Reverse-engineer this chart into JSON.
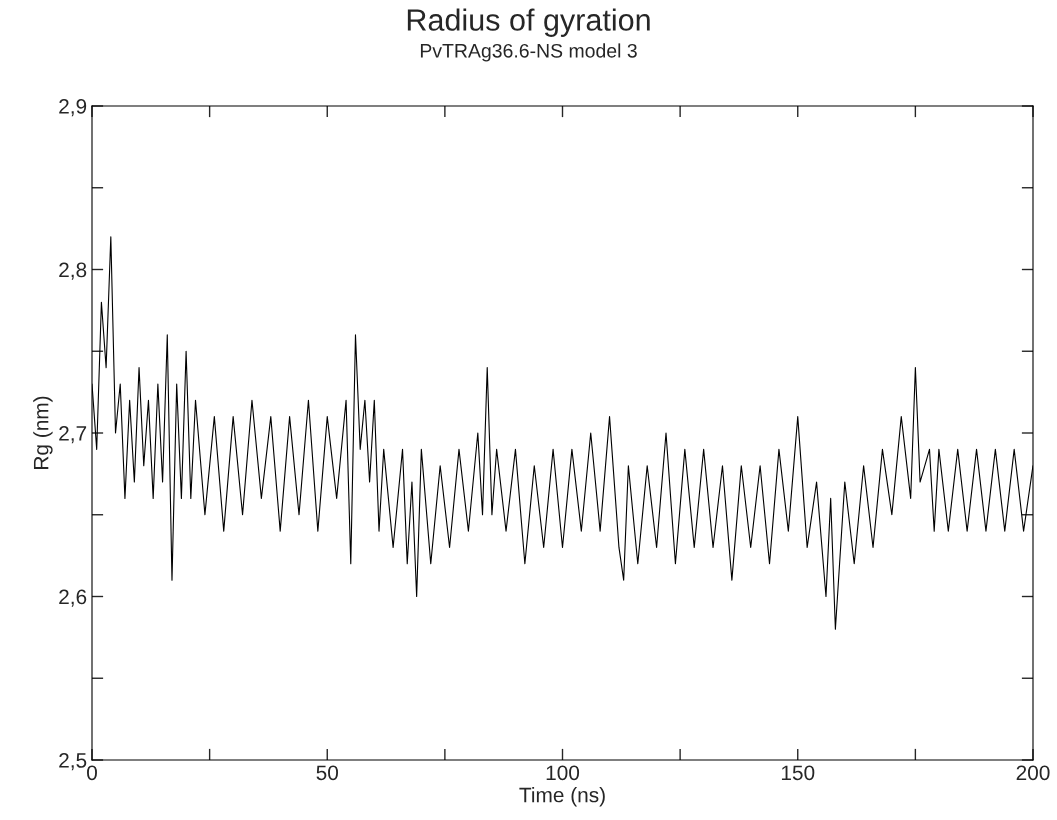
{
  "chart_data": {
    "type": "line",
    "title": "Radius of gyration",
    "subtitle": "PvTRAg36.6-NS model 3",
    "xlabel": "Time (ns)",
    "ylabel": "Rg (nm)",
    "xlim": [
      0,
      200
    ],
    "ylim": [
      2.5,
      2.9
    ],
    "xticks": [
      0,
      {
        "value": 25,
        "label": null
      },
      50,
      {
        "value": 75,
        "label": null
      },
      100,
      {
        "value": 125,
        "label": null
      },
      150,
      {
        "value": 175,
        "label": null
      },
      200
    ],
    "yticks": [
      {
        "value": 2.5,
        "label": "2,5"
      },
      {
        "value": 2.55,
        "label": null
      },
      {
        "value": 2.6,
        "label": "2,6"
      },
      {
        "value": 2.65,
        "label": null
      },
      {
        "value": 2.7,
        "label": "2,7"
      },
      {
        "value": 2.75,
        "label": null
      },
      {
        "value": 2.8,
        "label": "2,8"
      },
      {
        "value": 2.85,
        "label": null
      },
      {
        "value": 2.9,
        "label": "2,9"
      }
    ],
    "grid": false,
    "legend": false,
    "marker": "none",
    "line_style": "solid",
    "series": [
      {
        "color": "#000000",
        "x": [
          0,
          1,
          2,
          3,
          4,
          5,
          6,
          7,
          8,
          9,
          10,
          11,
          12,
          13,
          14,
          15,
          16,
          17,
          18,
          19,
          20,
          21,
          22,
          24,
          26,
          28,
          30,
          32,
          34,
          36,
          38,
          40,
          42,
          44,
          46,
          48,
          50,
          52,
          54,
          55,
          56,
          57,
          58,
          59,
          60,
          61,
          62,
          64,
          66,
          67,
          68,
          69,
          70,
          72,
          74,
          76,
          78,
          80,
          82,
          83,
          84,
          85,
          86,
          88,
          90,
          92,
          94,
          96,
          98,
          100,
          102,
          104,
          106,
          108,
          110,
          112,
          113,
          114,
          116,
          118,
          120,
          122,
          124,
          126,
          128,
          130,
          132,
          134,
          136,
          138,
          140,
          142,
          144,
          146,
          148,
          150,
          152,
          154,
          156,
          157,
          158,
          160,
          162,
          164,
          166,
          168,
          170,
          172,
          174,
          175,
          176,
          178,
          179,
          180,
          182,
          184,
          186,
          188,
          190,
          192,
          194,
          196,
          198,
          200
        ],
        "values": [
          2.73,
          2.69,
          2.78,
          2.74,
          2.82,
          2.7,
          2.73,
          2.66,
          2.72,
          2.67,
          2.74,
          2.68,
          2.72,
          2.66,
          2.73,
          2.67,
          2.76,
          2.61,
          2.73,
          2.66,
          2.75,
          2.66,
          2.72,
          2.65,
          2.71,
          2.64,
          2.71,
          2.65,
          2.72,
          2.66,
          2.71,
          2.64,
          2.71,
          2.65,
          2.72,
          2.64,
          2.71,
          2.66,
          2.72,
          2.62,
          2.76,
          2.69,
          2.72,
          2.67,
          2.72,
          2.64,
          2.69,
          2.63,
          2.69,
          2.62,
          2.67,
          2.6,
          2.69,
          2.62,
          2.68,
          2.63,
          2.69,
          2.64,
          2.7,
          2.65,
          2.74,
          2.65,
          2.69,
          2.64,
          2.69,
          2.62,
          2.68,
          2.63,
          2.69,
          2.63,
          2.69,
          2.64,
          2.7,
          2.64,
          2.71,
          2.63,
          2.61,
          2.68,
          2.62,
          2.68,
          2.63,
          2.7,
          2.62,
          2.69,
          2.63,
          2.69,
          2.63,
          2.68,
          2.61,
          2.68,
          2.63,
          2.68,
          2.62,
          2.69,
          2.64,
          2.71,
          2.63,
          2.67,
          2.6,
          2.66,
          2.58,
          2.67,
          2.62,
          2.68,
          2.63,
          2.69,
          2.65,
          2.71,
          2.66,
          2.74,
          2.67,
          2.69,
          2.64,
          2.69,
          2.64,
          2.69,
          2.64,
          2.69,
          2.64,
          2.69,
          2.64,
          2.69,
          2.64,
          2.68
        ]
      }
    ]
  }
}
